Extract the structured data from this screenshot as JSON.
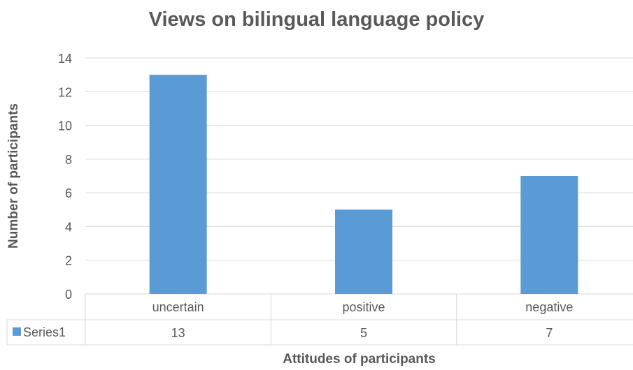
{
  "colors": {
    "bar": "#5b9bd5",
    "grid": "#d9d9d9",
    "text": "#595959",
    "background": "#ffffff"
  },
  "chart_data": {
    "type": "bar",
    "title": "Views on bilingual language policy",
    "xlabel": "Attitudes of participants",
    "ylabel": "Number of participants",
    "categories": [
      "uncertain",
      "positive",
      "negative"
    ],
    "series": [
      {
        "name": "Series1",
        "values": [
          13,
          5,
          7
        ],
        "color": "#5b9bd5"
      }
    ],
    "ylim": [
      0,
      14
    ],
    "yticks": [
      0,
      2,
      4,
      6,
      8,
      10,
      12,
      14
    ],
    "grid": true,
    "legend": "data-table-left",
    "data_table": true
  }
}
